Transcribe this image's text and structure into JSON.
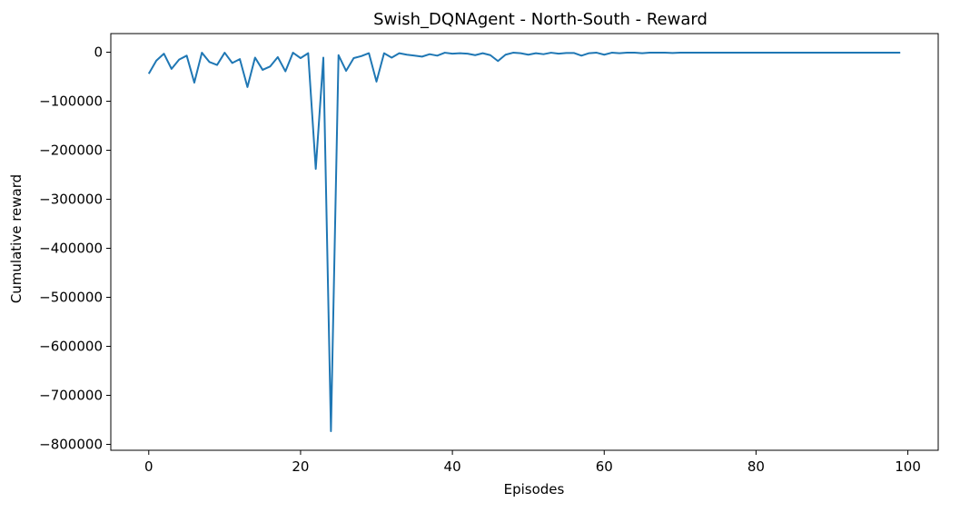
{
  "chart_data": {
    "type": "line",
    "title": "Swish_DQNAgent - North-South - Reward",
    "xlabel": "Episodes",
    "ylabel": "Cumulative reward",
    "xlim": [
      -5,
      104
    ],
    "ylim": [
      -812000,
      38000
    ],
    "xticks": [
      0,
      20,
      40,
      60,
      80,
      100
    ],
    "xtick_labels": [
      "0",
      "20",
      "40",
      "60",
      "80",
      "100"
    ],
    "yticks": [
      0,
      -100000,
      -200000,
      -300000,
      -400000,
      -500000,
      -600000,
      -700000,
      -800000
    ],
    "ytick_labels": [
      "0",
      "−100000",
      "−200000",
      "−300000",
      "−400000",
      "−500000",
      "−600000",
      "−700000",
      "−800000"
    ],
    "grid": false,
    "series": [
      {
        "color": "#1f77b4",
        "x": [
          0,
          1,
          2,
          3,
          4,
          5,
          6,
          7,
          8,
          9,
          10,
          11,
          12,
          13,
          14,
          15,
          16,
          17,
          18,
          19,
          20,
          21,
          22,
          23,
          24,
          25,
          26,
          27,
          28,
          29,
          30,
          31,
          32,
          33,
          34,
          35,
          36,
          37,
          38,
          39,
          40,
          41,
          42,
          43,
          44,
          45,
          46,
          47,
          48,
          49,
          50,
          51,
          52,
          53,
          54,
          55,
          56,
          57,
          58,
          59,
          60,
          61,
          62,
          63,
          64,
          65,
          66,
          67,
          68,
          69,
          70,
          71,
          72,
          73,
          74,
          75,
          76,
          77,
          78,
          79,
          80,
          81,
          82,
          83,
          84,
          85,
          86,
          87,
          88,
          89,
          90,
          91,
          92,
          93,
          94,
          95,
          96,
          97,
          98,
          99
        ],
        "y": [
          -44000,
          -17000,
          -3000,
          -34000,
          -15000,
          -7000,
          -62000,
          -1000,
          -20000,
          -26000,
          -1000,
          -22000,
          -14000,
          -71000,
          -11000,
          -36000,
          -29000,
          -10000,
          -39000,
          -1000,
          -12000,
          -2000,
          -238000,
          -11000,
          -773000,
          -6000,
          -38000,
          -12000,
          -8000,
          -2000,
          -60000,
          -2000,
          -11000,
          -2000,
          -5000,
          -7000,
          -9000,
          -4000,
          -7000,
          -1000,
          -3000,
          -2000,
          -3000,
          -6000,
          -2000,
          -6000,
          -18000,
          -5000,
          -1000,
          -2000,
          -5000,
          -2000,
          -4000,
          -1000,
          -3000,
          -1500,
          -1500,
          -7000,
          -2000,
          -1000,
          -5000,
          -1000,
          -2000,
          -1000,
          -1000,
          -2000,
          -1000,
          -1000,
          -1000,
          -1500,
          -1000,
          -1000,
          -800,
          -800,
          -800,
          -800,
          -800,
          -800,
          -800,
          -800,
          -1000,
          -1000,
          -800,
          -800,
          -800,
          -800,
          -800,
          -800,
          -800,
          -800,
          -800,
          -800,
          -800,
          -1000,
          -1000,
          -1000,
          -800,
          -1000,
          -1000,
          -800
        ]
      }
    ]
  }
}
